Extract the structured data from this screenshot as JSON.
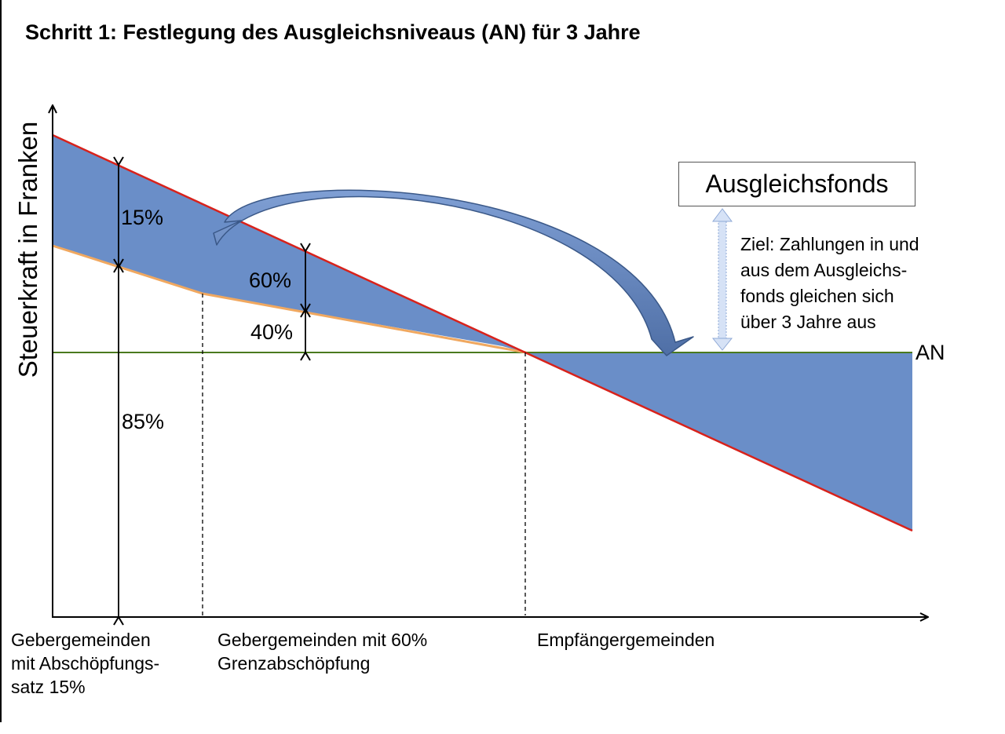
{
  "title": "Schritt 1:  Festlegung des Ausgleichsniveaus (AN) für 3 Jahre",
  "y_axis_label": "Steuerkraft in Franken",
  "labels": {
    "pct_15": "15%",
    "pct_60": "60%",
    "pct_40": "40%",
    "pct_85": "85%",
    "an": "AN"
  },
  "categories": {
    "donor_15": [
      "Gebergemeinden",
      "mit Abschöpfungs-",
      "satz 15%"
    ],
    "donor_60": [
      "Gebergemeinden mit 60%",
      "Grenzabschöpfung"
    ],
    "recipient": [
      "Empfängergemeinden"
    ]
  },
  "fund": {
    "title": "Ausgleichsfonds",
    "goal_lines": [
      "Ziel: Zahlungen in und",
      "aus dem Ausgleichs-",
      "fonds gleichen sich",
      "über 3 Jahre aus"
    ]
  },
  "colors": {
    "fill": "#6a8ec8",
    "fill_dark": "#4d6ea3",
    "tax_line": "#d8221b",
    "after_line": "#f0a860",
    "an_line": "#4a7a1e",
    "dbl_arrow": "#b8cdef"
  }
}
